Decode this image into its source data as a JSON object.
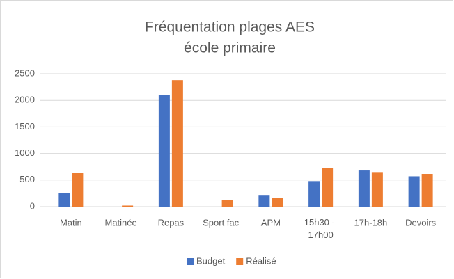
{
  "chart_data": {
    "type": "bar",
    "title": [
      "Fréquentation plages AES",
      "école primaire"
    ],
    "categories": [
      "Matin",
      "Matinée",
      "Repas",
      "Sport fac",
      "APM",
      "15h30 - 17h00",
      "17h-18h",
      "Devoirs"
    ],
    "series": [
      {
        "name": "Budget",
        "color": "#4472c4",
        "values": [
          260,
          0,
          2100,
          0,
          220,
          480,
          680,
          570
        ]
      },
      {
        "name": "Réalisé",
        "color": "#ed7d31",
        "values": [
          640,
          20,
          2380,
          130,
          165,
          720,
          650,
          615
        ]
      }
    ],
    "ylim": [
      0,
      2500
    ],
    "yticks": [
      0,
      500,
      1000,
      1500,
      2000,
      2500
    ],
    "grid": true,
    "legend": "bottom"
  }
}
